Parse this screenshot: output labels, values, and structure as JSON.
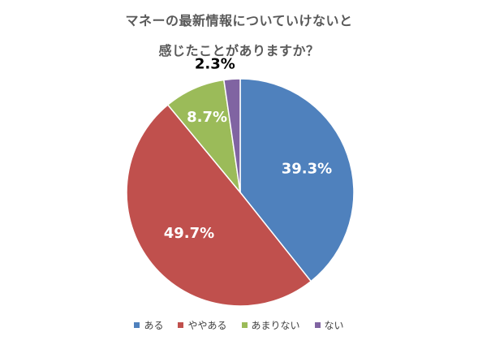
{
  "chart_data": {
    "type": "pie",
    "title_lines": [
      "マネーの最新情報についていけないと",
      "感じたことがありますか？"
    ],
    "categories": [
      "ある",
      "ややある",
      "あまりない",
      "ない"
    ],
    "values": [
      39.3,
      49.7,
      8.7,
      2.3
    ],
    "labels": [
      "39.3%",
      "49.7%",
      "8.7%",
      "2.3%"
    ],
    "colors": [
      "#4f81bd",
      "#c0504d",
      "#9bbb59",
      "#8064a2"
    ],
    "start": "12 o'clock",
    "direction": "clockwise",
    "legend_position": "bottom"
  }
}
